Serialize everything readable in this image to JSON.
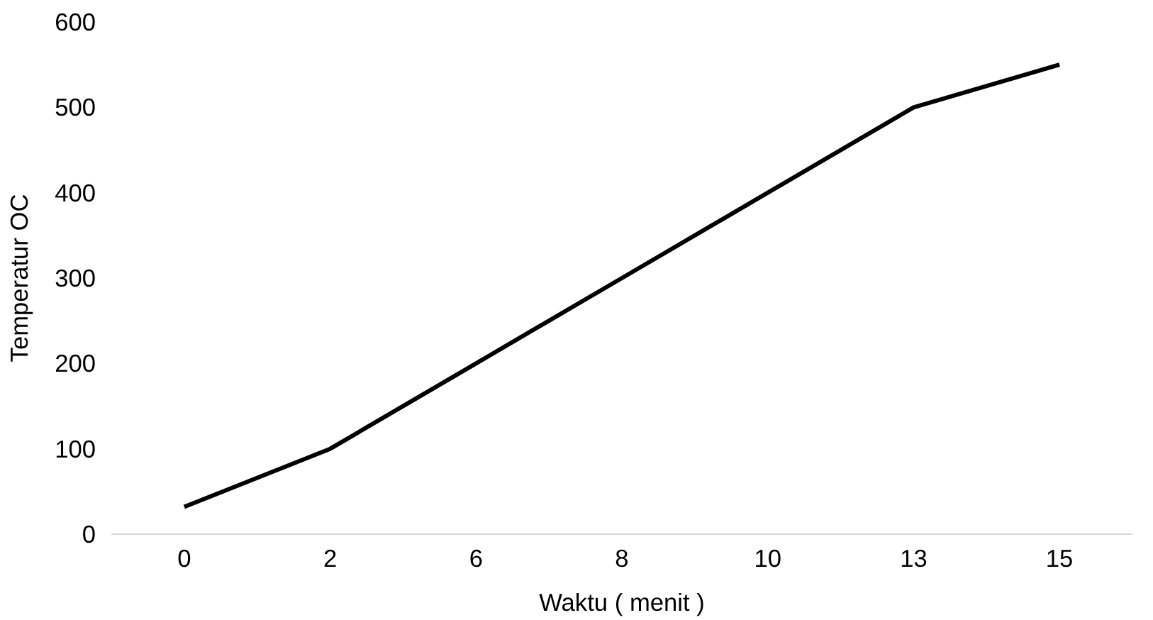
{
  "chart_data": {
    "type": "line",
    "xlabel": "Waktu ( menit )",
    "ylabel": "Temperatur OC",
    "categories": [
      "0",
      "2",
      "6",
      "8",
      "10",
      "13",
      "15"
    ],
    "series": [
      {
        "color": "#000000",
        "values": [
          32,
          100,
          200,
          300,
          400,
          500,
          550
        ]
      }
    ],
    "ylim": [
      0,
      600
    ],
    "yticks": [
      0,
      100,
      200,
      300,
      400,
      500,
      600
    ],
    "grid": false,
    "marker": "none",
    "line_style": "solid"
  }
}
